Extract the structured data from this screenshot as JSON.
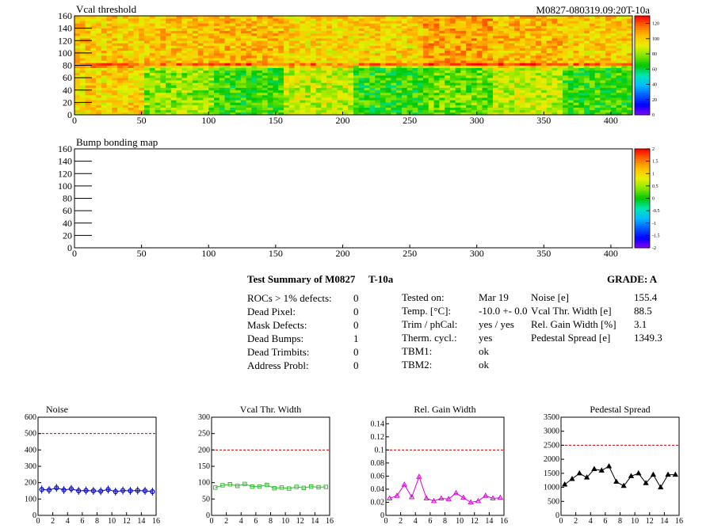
{
  "header": {
    "module_id": "M0827-080319.09:20T-10a"
  },
  "maps": [
    {
      "title": "Vcal threshold",
      "x_ticks": [
        "0",
        "50",
        "100",
        "150",
        "200",
        "250",
        "300",
        "350",
        "400"
      ],
      "y_ticks": [
        "0",
        "20",
        "40",
        "60",
        "80",
        "100",
        "120",
        "140",
        "160"
      ],
      "palette_ticks": [
        "0",
        "20",
        "40",
        "60",
        "80",
        "100",
        "120"
      ],
      "xlim": [
        0,
        416
      ],
      "ylim": [
        0,
        160
      ],
      "zlim": [
        0,
        130
      ],
      "roc_levels": [
        [
          98,
          80,
          70,
          86,
          68,
          76,
          86,
          70
        ],
        [
          100,
          102,
          104,
          98,
          98,
          108,
          104,
          100
        ]
      ]
    },
    {
      "title": "Bump bonding map",
      "x_ticks": [
        "0",
        "50",
        "100",
        "150",
        "200",
        "250",
        "300",
        "350",
        "400"
      ],
      "y_ticks": [
        "0",
        "20",
        "40",
        "60",
        "80",
        "100",
        "120",
        "140",
        "160"
      ],
      "palette_ticks": [
        "-2",
        "-1.5",
        "-1",
        "-0.5",
        "0",
        "0.5",
        "1",
        "1.5",
        "2"
      ],
      "xlim": [
        0,
        416
      ],
      "ylim": [
        0,
        160
      ],
      "zlim": [
        -2,
        2
      ]
    }
  ],
  "summary": {
    "title": "Test Summary of M0827",
    "temp_label": "T-10a",
    "grade": "GRADE:  A",
    "defects": [
      {
        "label": "ROCs > 1% defects:",
        "value": "0"
      },
      {
        "label": "Dead Pixel:",
        "value": "0"
      },
      {
        "label": "Mask Defects:",
        "value": "0"
      },
      {
        "label": "Dead Bumps:",
        "value": "1"
      },
      {
        "label": "Dead Trimbits:",
        "value": "0"
      },
      {
        "label": "Address Probl:",
        "value": "0"
      }
    ],
    "conditions": [
      {
        "label": "Tested on:",
        "value": "Mar 19"
      },
      {
        "label": "Temp. [°C]:",
        "value": "-10.0 +- 0.0"
      },
      {
        "label": "Trim / phCal:",
        "value": "yes / yes"
      },
      {
        "label": "Therm. cycl.:",
        "value": "yes"
      },
      {
        "label": "TBM1:",
        "value": "ok"
      },
      {
        "label": "TBM2:",
        "value": "ok"
      }
    ],
    "results": [
      {
        "label": "Noise [e]",
        "value": "155.4"
      },
      {
        "label": "Vcal Thr. Width [e]",
        "value": "88.5"
      },
      {
        "label": "Rel. Gain Width [%]",
        "value": "3.1"
      },
      {
        "label": "Pedestal Spread [e]",
        "value": "1349.3"
      }
    ]
  },
  "chart_data": [
    {
      "type": "heatmap",
      "title": "Vcal threshold",
      "xlim": [
        0,
        416
      ],
      "ylim": [
        0,
        160
      ],
      "zlim": [
        0,
        130
      ],
      "description_values_note": "",
      "roc_mean_levels": {
        "bottom_row": [
          98,
          80,
          70,
          86,
          68,
          76,
          86,
          70
        ],
        "top_row": [
          100,
          102,
          104,
          98,
          98,
          108,
          104,
          100
        ]
      }
    },
    {
      "type": "heatmap",
      "title": "Bump bonding map",
      "xlim": [
        0,
        416
      ],
      "ylim": [
        0,
        160
      ],
      "zlim": [
        -2,
        2
      ]
    },
    {
      "type": "line",
      "title": "Noise",
      "x": [
        0.5,
        1.5,
        2.5,
        3.5,
        4.5,
        5.5,
        6.5,
        7.5,
        8.5,
        9.5,
        10.5,
        11.5,
        12.5,
        13.5,
        14.5,
        15.5
      ],
      "values": [
        158,
        155,
        168,
        155,
        162,
        150,
        152,
        150,
        148,
        158,
        145,
        152,
        150,
        152,
        150,
        145
      ],
      "xlim": [
        0,
        16
      ],
      "ylim": [
        0,
        600
      ],
      "threshold": 500,
      "color": "#0000cc",
      "marker": "circle",
      "x_ticks": [
        "0",
        "2",
        "4",
        "6",
        "8",
        "10",
        "12",
        "14",
        "16"
      ],
      "y_ticks": [
        "0",
        "100",
        "200",
        "300",
        "400",
        "500",
        "600"
      ]
    },
    {
      "type": "line",
      "title": "Vcal Thr. Width",
      "x": [
        0.5,
        1.5,
        2.5,
        3.5,
        4.5,
        5.5,
        6.5,
        7.5,
        8.5,
        9.5,
        10.5,
        11.5,
        12.5,
        13.5,
        14.5,
        15.5
      ],
      "values": [
        85,
        92,
        95,
        90,
        96,
        88,
        88,
        93,
        83,
        85,
        82,
        87,
        84,
        88,
        86,
        87
      ],
      "xlim": [
        0,
        16
      ],
      "ylim": [
        0,
        300
      ],
      "threshold": 200,
      "color": "#33bb33",
      "marker": "square",
      "x_ticks": [
        "0",
        "2",
        "4",
        "6",
        "8",
        "10",
        "12",
        "14",
        "16"
      ],
      "y_ticks": [
        "0",
        "50",
        "100",
        "150",
        "200",
        "250",
        "300"
      ]
    },
    {
      "type": "line",
      "title": "Rel. Gain Width",
      "x": [
        0.5,
        1.5,
        2.5,
        3.5,
        4.5,
        5.5,
        6.5,
        7.5,
        8.5,
        9.5,
        10.5,
        11.5,
        12.5,
        13.5,
        14.5,
        15.5
      ],
      "values": [
        0.026,
        0.03,
        0.047,
        0.028,
        0.059,
        0.026,
        0.022,
        0.026,
        0.025,
        0.034,
        0.027,
        0.02,
        0.022,
        0.03,
        0.026,
        0.027
      ],
      "xlim": [
        0,
        16
      ],
      "ylim": [
        0,
        0.15
      ],
      "threshold": 0.1,
      "color": "#dd00dd",
      "marker": "triangle",
      "x_ticks": [
        "0",
        "2",
        "4",
        "6",
        "8",
        "10",
        "12",
        "14",
        "16"
      ],
      "y_ticks": [
        "0",
        "0.02",
        "0.04",
        "0.06",
        "0.08",
        "0.1",
        "0.12",
        "0.14"
      ]
    },
    {
      "type": "line",
      "title": "Pedestal Spread",
      "x": [
        0.5,
        1.5,
        2.5,
        3.5,
        4.5,
        5.5,
        6.5,
        7.5,
        8.5,
        9.5,
        10.5,
        11.5,
        12.5,
        13.5,
        14.5,
        15.5
      ],
      "values": [
        1100,
        1300,
        1500,
        1350,
        1650,
        1600,
        1750,
        1200,
        1050,
        1400,
        1500,
        1150,
        1450,
        1000,
        1450,
        1450
      ],
      "xlim": [
        0,
        16
      ],
      "ylim": [
        0,
        3500
      ],
      "threshold": 2500,
      "color": "#000000",
      "marker": "triangle",
      "x_ticks": [
        "0",
        "2",
        "4",
        "6",
        "8",
        "10",
        "12",
        "14",
        "16"
      ],
      "y_ticks": [
        "0",
        "500",
        "1000",
        "1500",
        "2000",
        "2500",
        "3000",
        "3500"
      ]
    }
  ]
}
